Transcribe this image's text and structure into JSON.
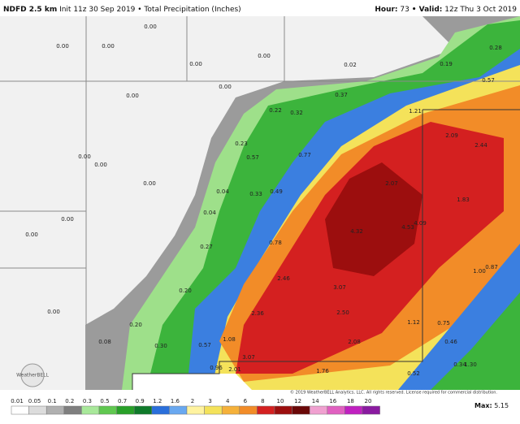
{
  "header": {
    "title": "NDFD 2.5 km",
    "subtitle": "Init 11z 30 Sep 2019 • Total Precipitation (Inches)",
    "hour_label": "Hour:",
    "hour": "73",
    "valid_label": "• Valid:",
    "valid": "12z Thu 3 Oct 2019"
  },
  "labels": [
    "0.00",
    "0.00",
    "0.00",
    "0.00",
    "0.00",
    "0.02",
    "0.19",
    "0.28",
    "0.57",
    "0.00",
    "0.00",
    "0.37",
    "1.21",
    "0.22",
    "0.32",
    "0.23",
    "0.57",
    "0.77",
    "0.00",
    "0.00",
    "2.09",
    "2.44",
    "0.00",
    "0.04",
    "0.33",
    "0.49",
    "2.07",
    "1.83",
    "0.00",
    "0.04",
    "4.32",
    "4.53",
    "4.09",
    "0.00",
    "0.27",
    "0.78",
    "0.87",
    "1.00",
    "0.20",
    "2.46",
    "3.07",
    "0.00",
    "2.36",
    "2.50",
    "0.20",
    "1.12",
    "0.75",
    "0.08",
    "0.30",
    "0.57",
    "1.08",
    "2.08",
    "0.46",
    "3.07",
    "0.34",
    "1.30",
    "0.96",
    "2.01",
    "1.76",
    "0.52"
  ],
  "logo": "WeatherBELL",
  "copyright": "© 2019 WeatherBELL Analytics, LLC. All rights reserved. License required for commercial distribution.",
  "colorbar": {
    "ticks": [
      "0.01",
      "0.05",
      "0.1",
      "0.2",
      "0.3",
      "0.5",
      "0.7",
      "0.9",
      "1.2",
      "1.6",
      "2",
      "3",
      "4",
      "6",
      "8",
      "10",
      "12",
      "14",
      "16",
      "18",
      "20"
    ]
  },
  "max_label": "Max:",
  "max": "5.15"
}
